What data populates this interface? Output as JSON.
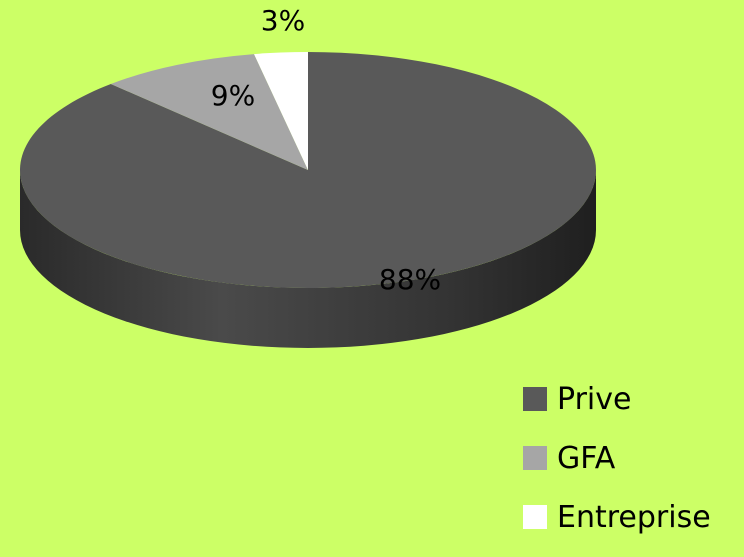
{
  "chart_data": {
    "type": "pie",
    "style": "3d",
    "categories": [
      "Prive",
      "GFA",
      "Entreprise"
    ],
    "values": [
      88,
      9,
      3
    ],
    "data_labels": [
      "88%",
      "9%",
      "3%"
    ],
    "colors": [
      "#595959",
      "#a6a6a6",
      "#ffffff"
    ],
    "side_colors": [
      "#3a3a3a",
      "#7a7a7a",
      "#d9d9d9"
    ],
    "legend_position": "bottom-right",
    "background": "#ccff66"
  }
}
